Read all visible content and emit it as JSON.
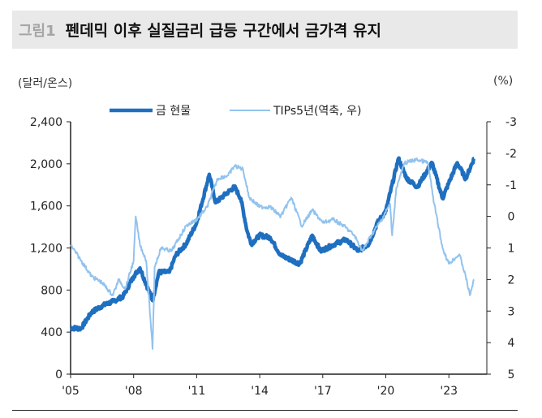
{
  "title": {
    "label": "그림1",
    "text": "펜데믹 이후 실질금리 급등 구간에서 금가격 유지"
  },
  "chart_data": {
    "type": "line",
    "left_unit": "(달러/온스)",
    "right_unit": "(%)",
    "legend_position": "top-center",
    "x_ticks": [
      "'05",
      "'08",
      "'11",
      "'14",
      "'17",
      "'20",
      "'23"
    ],
    "x_tick_years": [
      2005,
      2008,
      2011,
      2014,
      2017,
      2020,
      2023
    ],
    "xlim": [
      2005,
      2025
    ],
    "left_axis": {
      "ylim": [
        0,
        2400
      ],
      "ticks": [
        "0",
        "400",
        "800",
        "1,200",
        "1,600",
        "2,000",
        "2,400"
      ],
      "tick_values": [
        0,
        400,
        800,
        1200,
        1600,
        2000,
        2400
      ]
    },
    "right_axis": {
      "ylim": [
        -3,
        5
      ],
      "inverted": true,
      "ticks": [
        "-3",
        "-2",
        "-1",
        "0",
        "1",
        "2",
        "3",
        "4",
        "5"
      ],
      "tick_values": [
        -3,
        -2,
        -1,
        0,
        1,
        2,
        3,
        4,
        5
      ]
    },
    "grid": false,
    "series": [
      {
        "name": "금 현물",
        "axis": "left",
        "color": "#1f6fc0",
        "points": [
          [
            2005,
            440
          ],
          [
            2005.5,
            435
          ],
          [
            2006,
            590
          ],
          [
            2006.5,
            650
          ],
          [
            2007,
            690
          ],
          [
            2007.5,
            740
          ],
          [
            2008,
            930
          ],
          [
            2008.3,
            1010
          ],
          [
            2008.9,
            700
          ],
          [
            2009.2,
            970
          ],
          [
            2009.7,
            970
          ],
          [
            2010,
            1130
          ],
          [
            2010.5,
            1240
          ],
          [
            2011,
            1440
          ],
          [
            2011.6,
            1900
          ],
          [
            2011.9,
            1630
          ],
          [
            2012.3,
            1700
          ],
          [
            2012.8,
            1780
          ],
          [
            2013.1,
            1670
          ],
          [
            2013.4,
            1360
          ],
          [
            2013.6,
            1240
          ],
          [
            2014,
            1320
          ],
          [
            2014.5,
            1300
          ],
          [
            2015,
            1130
          ],
          [
            2015.9,
            1050
          ],
          [
            2016.5,
            1320
          ],
          [
            2016.9,
            1170
          ],
          [
            2017.6,
            1240
          ],
          [
            2018.1,
            1280
          ],
          [
            2018.7,
            1170
          ],
          [
            2019.2,
            1240
          ],
          [
            2019.6,
            1440
          ],
          [
            2020,
            1550
          ],
          [
            2020.6,
            2050
          ],
          [
            2021,
            1860
          ],
          [
            2021.5,
            1780
          ],
          [
            2022.2,
            2010
          ],
          [
            2022.7,
            1670
          ],
          [
            2023,
            1820
          ],
          [
            2023.4,
            2010
          ],
          [
            2023.8,
            1860
          ],
          [
            2024.2,
            2050
          ]
        ]
      },
      {
        "name": "TIPs5년(역축, 우)",
        "axis": "right",
        "color": "#92c3ee",
        "points": [
          [
            2005,
            0.9
          ],
          [
            2005.5,
            1.4
          ],
          [
            2006,
            1.9
          ],
          [
            2006.5,
            2.1
          ],
          [
            2007,
            2.5
          ],
          [
            2007.3,
            2.0
          ],
          [
            2007.6,
            2.3
          ],
          [
            2008,
            1.4
          ],
          [
            2008.1,
            0.0
          ],
          [
            2008.3,
            0.9
          ],
          [
            2008.6,
            1.4
          ],
          [
            2008.9,
            4.2
          ],
          [
            2009,
            1.6
          ],
          [
            2009.3,
            1.0
          ],
          [
            2009.8,
            1.1
          ],
          [
            2010.5,
            0.3
          ],
          [
            2011,
            0.1
          ],
          [
            2011.5,
            -0.3
          ],
          [
            2012,
            -1.2
          ],
          [
            2012.5,
            -1.3
          ],
          [
            2012.8,
            -1.6
          ],
          [
            2013.2,
            -1.5
          ],
          [
            2013.5,
            -0.6
          ],
          [
            2014,
            -0.3
          ],
          [
            2014.5,
            -0.3
          ],
          [
            2015,
            0.0
          ],
          [
            2015.5,
            -0.6
          ],
          [
            2016,
            0.3
          ],
          [
            2016.5,
            -0.2
          ],
          [
            2017,
            0.2
          ],
          [
            2017.5,
            0.1
          ],
          [
            2018,
            0.3
          ],
          [
            2018.5,
            0.6
          ],
          [
            2018.9,
            1.1
          ],
          [
            2019.3,
            0.6
          ],
          [
            2019.8,
            0.1
          ],
          [
            2020.2,
            -0.4
          ],
          [
            2020.3,
            0.6
          ],
          [
            2020.5,
            -0.9
          ],
          [
            2020.9,
            -1.7
          ],
          [
            2021.5,
            -1.8
          ],
          [
            2022,
            -1.7
          ],
          [
            2022.3,
            -0.4
          ],
          [
            2022.7,
            1.0
          ],
          [
            2023,
            1.5
          ],
          [
            2023.5,
            1.2
          ],
          [
            2023.8,
            1.9
          ],
          [
            2024,
            2.5
          ],
          [
            2024.2,
            2.0
          ]
        ]
      }
    ]
  }
}
